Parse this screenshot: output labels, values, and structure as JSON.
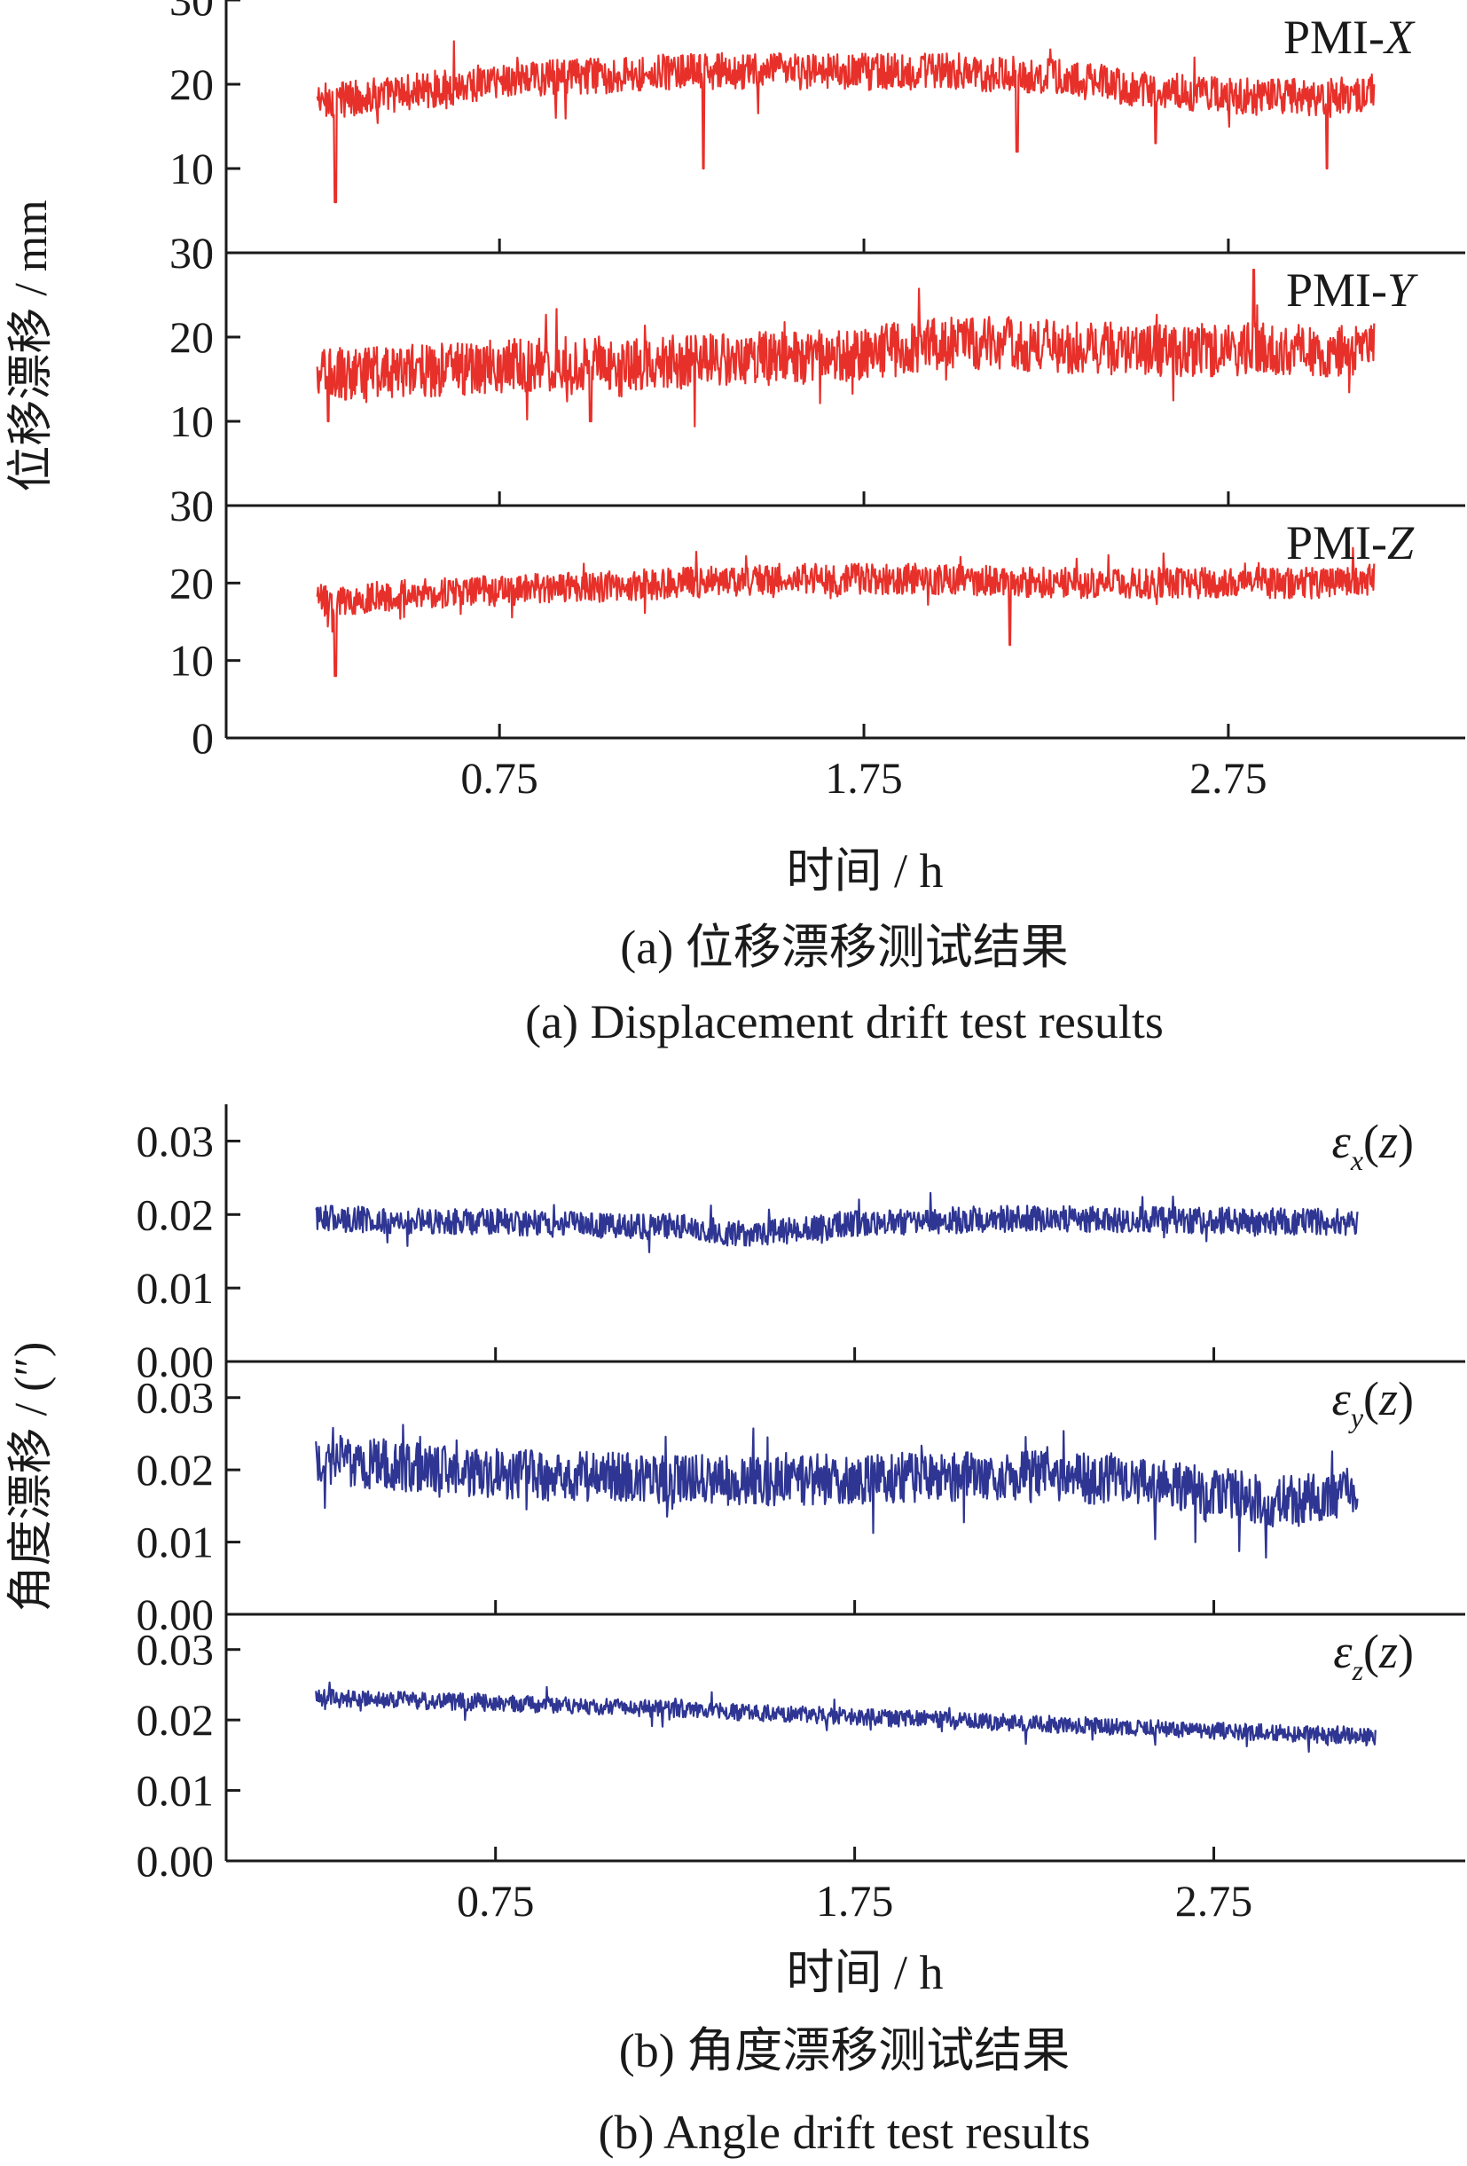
{
  "colors": {
    "red_series": "#e8302a",
    "blue_series": "#2e3592",
    "axis": "#1a1a1a"
  },
  "panel_a": {
    "ylabel": "位移漂移 / mm",
    "xlabel": "时间 / h",
    "caption_cn": "(a) 位移漂移测试结果",
    "caption_en": "(a) Displacement drift test results"
  },
  "panel_b": {
    "ylabel": "角度漂移 / (″)",
    "xlabel": "时间 / h",
    "caption_cn": "(b) 角度漂移测试结果",
    "caption_en": "(b) Angle drift test results"
  },
  "chart_data": [
    {
      "type": "line",
      "panel": "a",
      "x_ticks": [
        0.75,
        1.75,
        2.75
      ],
      "x_tick_labels": [
        "0.75",
        "1.75",
        "2.75"
      ],
      "xlim": [
        0.0,
        3.4
      ],
      "x_data_range": [
        0.25,
        3.15
      ],
      "ylim": [
        0,
        30
      ],
      "y_ticks": [
        0,
        10,
        20,
        30
      ],
      "y_tick_labels": [
        "0",
        "10",
        "20",
        "30"
      ],
      "series": [
        {
          "name": "PMI-X",
          "name_prefix": "PMI-",
          "name_axis": "X",
          "color": "#e8302a",
          "x": [
            0.25,
            0.5,
            0.75,
            1.0,
            1.25,
            1.5,
            1.75,
            2.0,
            2.25,
            2.5,
            2.75,
            3.0,
            3.15
          ],
          "y": [
            18,
            19,
            20.5,
            21,
            21.5,
            21.5,
            21.5,
            21.5,
            21,
            19.5,
            18.5,
            18.5,
            19
          ],
          "noise": 2.2,
          "spikes": [
            [
              0.3,
              6
            ],
            [
              1.31,
              10
            ],
            [
              2.17,
              12
            ],
            [
              2.55,
              13
            ],
            [
              3.02,
              10
            ]
          ]
        },
        {
          "name": "PMI-Y",
          "name_prefix": "PMI-",
          "name_axis": "Y",
          "color": "#e8302a",
          "x": [
            0.25,
            0.5,
            0.75,
            1.0,
            1.25,
            1.5,
            1.75,
            2.0,
            2.25,
            2.5,
            2.75,
            3.0,
            3.15
          ],
          "y": [
            15.5,
            16,
            16.5,
            17,
            17,
            17.5,
            18,
            19.5,
            19,
            18.5,
            18.5,
            18.5,
            18.5
          ],
          "noise": 3.2,
          "spikes": [
            [
              0.28,
              10
            ],
            [
              1.0,
              10
            ],
            [
              2.82,
              28
            ]
          ]
        },
        {
          "name": "PMI-Z",
          "name_prefix": "PMI-",
          "name_axis": "Z",
          "color": "#e8302a",
          "x": [
            0.25,
            0.5,
            0.75,
            1.0,
            1.25,
            1.5,
            1.75,
            2.0,
            2.25,
            2.5,
            2.75,
            3.0,
            3.15
          ],
          "y": [
            17.5,
            18.5,
            19,
            19.5,
            20,
            20.5,
            20.5,
            20.5,
            20,
            20,
            20,
            20,
            20.5
          ],
          "noise": 2.0,
          "spikes": [
            [
              0.3,
              8
            ],
            [
              2.15,
              12
            ]
          ]
        }
      ]
    },
    {
      "type": "line",
      "panel": "b",
      "x_ticks": [
        0.75,
        1.75,
        2.75
      ],
      "x_tick_labels": [
        "0.75",
        "1.75",
        "2.75"
      ],
      "xlim": [
        0.0,
        3.45
      ],
      "x_data_range": [
        0.25,
        3.15
      ],
      "ylim": [
        0.0,
        0.035
      ],
      "y_ticks": [
        0.0,
        0.01,
        0.02,
        0.03
      ],
      "y_tick_labels": [
        "0.00",
        "0.01",
        "0.02",
        "0.03"
      ],
      "series": [
        {
          "name": "εx(z)",
          "name_symbol": "ε",
          "name_sub": "x",
          "name_arg": "(z)",
          "color": "#2e3592",
          "x": [
            0.25,
            0.5,
            0.75,
            1.0,
            1.25,
            1.45,
            1.75,
            2.0,
            2.25,
            2.5,
            2.75,
            3.0,
            3.15
          ],
          "y": [
            0.0195,
            0.0192,
            0.019,
            0.0187,
            0.0183,
            0.0172,
            0.0188,
            0.0192,
            0.0195,
            0.0193,
            0.0192,
            0.019,
            0.019
          ],
          "noise": 0.0018
        },
        {
          "name": "εy(z)",
          "name_symbol": "ε",
          "name_sub": "y",
          "name_arg": "(z)",
          "color": "#2e3592",
          "x": [
            0.25,
            0.5,
            0.75,
            1.0,
            1.25,
            1.5,
            1.75,
            2.0,
            2.25,
            2.5,
            2.75,
            2.9,
            3.15
          ],
          "y": [
            0.0215,
            0.0205,
            0.0195,
            0.019,
            0.0188,
            0.0185,
            0.0188,
            0.019,
            0.0192,
            0.0185,
            0.0172,
            0.0155,
            0.017
          ],
          "noise": 0.0035
        },
        {
          "name": "εz(z)",
          "name_symbol": "ε",
          "name_sub": "z",
          "name_arg": "(z)",
          "color": "#2e3592",
          "x": [
            0.25,
            0.5,
            0.75,
            1.0,
            1.25,
            1.5,
            1.75,
            2.0,
            2.25,
            2.5,
            2.75,
            3.0,
            3.2
          ],
          "y": [
            0.0232,
            0.0228,
            0.0224,
            0.022,
            0.0215,
            0.021,
            0.0205,
            0.02,
            0.0195,
            0.019,
            0.0185,
            0.018,
            0.0175
          ],
          "noise": 0.0012
        }
      ]
    }
  ]
}
